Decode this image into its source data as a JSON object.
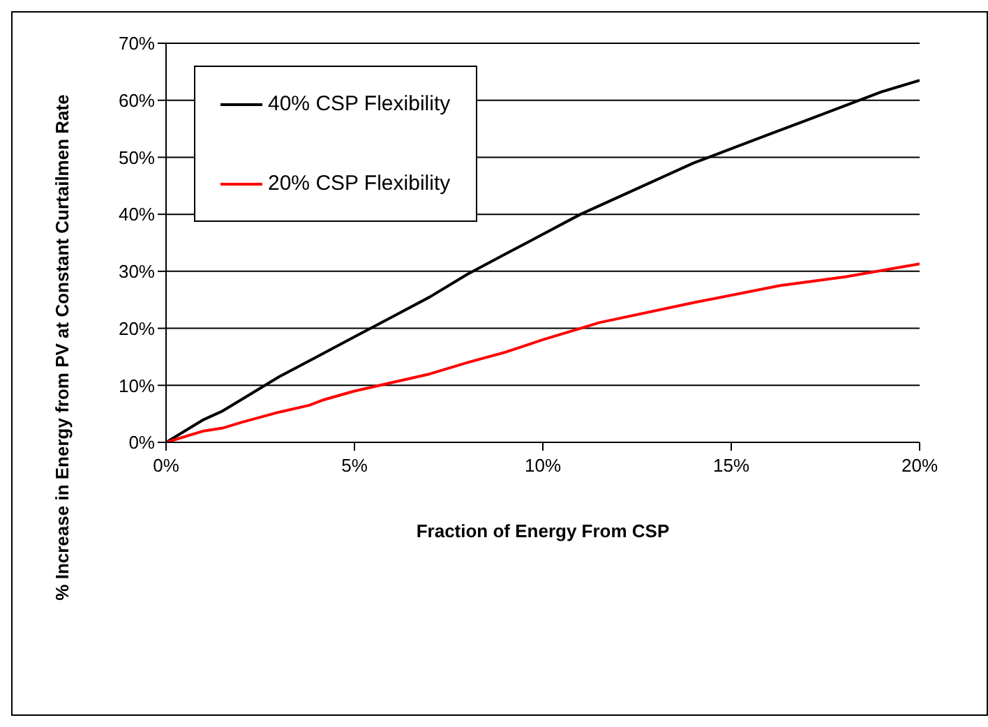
{
  "chart_data": {
    "type": "line",
    "xlabel": "Fraction of Energy From CSP",
    "ylabel": "% Increase in Energy from PV at Constant Curtailmen Rate",
    "series": [
      {
        "name": "40% CSP Flexibility",
        "color": "#000000",
        "x": [
          0,
          1,
          1.5,
          2,
          3,
          4,
          5,
          6,
          7,
          8,
          9,
          10,
          11,
          12,
          13,
          14,
          15,
          16,
          17,
          18,
          19,
          20
        ],
        "values": [
          0,
          4,
          5.5,
          7.5,
          11.5,
          15,
          18.5,
          22,
          25.5,
          29.5,
          33,
          36.5,
          40,
          43,
          46,
          49,
          51.5,
          54,
          56.5,
          59,
          61.5,
          63.5
        ]
      },
      {
        "name": "20% CSP Flexibility",
        "color": "#ff0000",
        "x": [
          0,
          1,
          1.5,
          2,
          3,
          3.8,
          4.2,
          5,
          6,
          7,
          8,
          9,
          10,
          11,
          11.5,
          14,
          16.3,
          18,
          20
        ],
        "values": [
          0,
          2,
          2.5,
          3.5,
          5.3,
          6.5,
          7.5,
          9,
          10.5,
          12,
          14,
          15.8,
          18,
          20,
          21,
          24.5,
          27.5,
          29,
          31.3
        ]
      }
    ],
    "xlim": [
      0,
      20
    ],
    "xticks": [
      {
        "value": 0,
        "label": "0%"
      },
      {
        "value": 5,
        "label": "5%"
      },
      {
        "value": 10,
        "label": "10%"
      },
      {
        "value": 15,
        "label": "15%"
      },
      {
        "value": 20,
        "label": "20%"
      }
    ],
    "ylim": [
      0,
      70
    ],
    "yticks": [
      {
        "value": 0,
        "label": "0%"
      },
      {
        "value": 10,
        "label": "10%"
      },
      {
        "value": 20,
        "label": "20%"
      },
      {
        "value": 30,
        "label": "30%"
      },
      {
        "value": 40,
        "label": "40%"
      },
      {
        "value": 50,
        "label": "50%"
      },
      {
        "value": 60,
        "label": "60%"
      },
      {
        "value": 70,
        "label": "70%"
      }
    ],
    "grid": "y",
    "legend": "top left",
    "marker": "none",
    "line_style": "solid"
  }
}
